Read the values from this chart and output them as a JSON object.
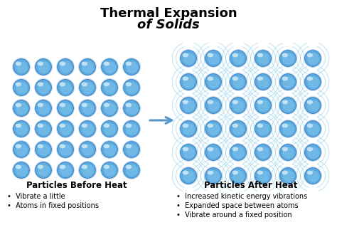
{
  "title_line1": "Thermal Expansion",
  "title_line2": "of Solids",
  "title_fontsize": 13,
  "title_fontweight": "bold",
  "background_color": "#ffffff",
  "before_label": "Particles Before Heat",
  "after_label": "Particles After Heat",
  "before_bullets": [
    "Vibrate a little",
    "Atoms in fixed positions"
  ],
  "after_bullets": [
    "Increased kinetic energy vibrations",
    "Expanded space between atoms",
    "Vibrate around a fixed position"
  ],
  "before_rows": 6,
  "before_cols": 6,
  "after_rows": 6,
  "after_cols": 6,
  "ball_color_inner": "#7abfe8",
  "ball_color_mid": "#5aaae0",
  "ball_color_outer": "#3888cc",
  "ball_color_highlight": "#d0eaf8",
  "ball_color_shadow": "#2a70b8",
  "vibration_color": "#88cce8",
  "arrow_color": "#5599cc",
  "label_fontsize": 8.5,
  "bullet_fontsize": 7.0
}
